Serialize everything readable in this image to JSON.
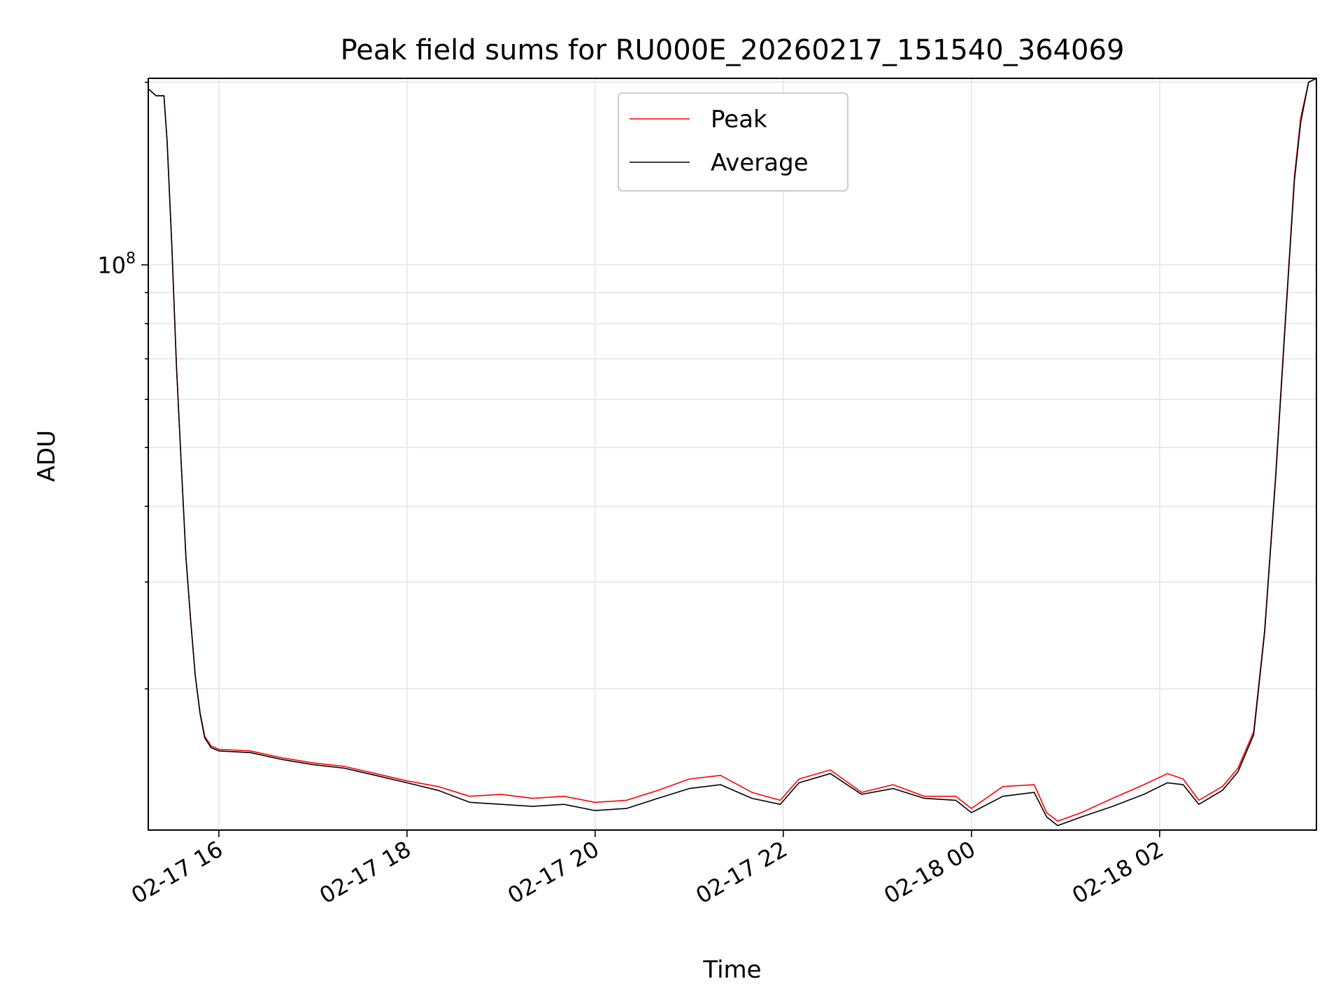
{
  "chart_data": {
    "type": "line",
    "title": "Peak field sums for RU000E_20260217_151540_364069",
    "xlabel": "Time",
    "ylabel": "ADU",
    "yscale": "log",
    "grid": true,
    "legend_position": "top-center",
    "x_start": "2026-02-17 15:15",
    "x_end": "2026-02-18 03:40",
    "xlim": [
      "2026-02-17 15:15",
      "2026-02-18 03:40"
    ],
    "ylim": [
      11700000,
      203000000
    ],
    "x_ticks": [
      {
        "time": "2026-02-17 16:00",
        "label": "02-17 16"
      },
      {
        "time": "2026-02-17 18:00",
        "label": "02-17 18"
      },
      {
        "time": "2026-02-17 20:00",
        "label": "02-17 20"
      },
      {
        "time": "2026-02-17 22:00",
        "label": "02-17 22"
      },
      {
        "time": "2026-02-18 00:00",
        "label": "02-18 00"
      },
      {
        "time": "2026-02-18 02:00",
        "label": "02-18 02"
      }
    ],
    "y_ticks": [
      {
        "value": 100000000,
        "label": "10",
        "exponent": "8"
      }
    ],
    "series": [
      {
        "name": "Peak",
        "color": "#ff0000",
        "x": [
          "2026-02-17 15:15",
          "2026-02-17 15:20",
          "2026-02-17 15:25",
          "2026-02-17 15:27",
          "2026-02-17 15:30",
          "2026-02-17 15:33",
          "2026-02-17 15:36",
          "2026-02-17 15:39",
          "2026-02-17 15:42",
          "2026-02-17 15:45",
          "2026-02-17 15:48",
          "2026-02-17 15:51",
          "2026-02-17 15:55",
          "2026-02-17 16:00",
          "2026-02-17 16:20",
          "2026-02-17 16:40",
          "2026-02-17 17:00",
          "2026-02-17 17:20",
          "2026-02-17 17:40",
          "2026-02-17 18:00",
          "2026-02-17 18:20",
          "2026-02-17 18:40",
          "2026-02-17 19:00",
          "2026-02-17 19:20",
          "2026-02-17 19:40",
          "2026-02-17 20:00",
          "2026-02-17 20:20",
          "2026-02-17 20:40",
          "2026-02-17 21:00",
          "2026-02-17 21:20",
          "2026-02-17 21:40",
          "2026-02-17 21:58",
          "2026-02-17 22:10",
          "2026-02-17 22:30",
          "2026-02-17 22:50",
          "2026-02-17 23:10",
          "2026-02-17 23:30",
          "2026-02-17 23:50",
          "2026-02-18 00:00",
          "2026-02-18 00:20",
          "2026-02-18 00:40",
          "2026-02-18 00:48",
          "2026-02-18 00:55",
          "2026-02-18 01:10",
          "2026-02-18 01:30",
          "2026-02-18 01:50",
          "2026-02-18 02:05",
          "2026-02-18 02:15",
          "2026-02-18 02:25",
          "2026-02-18 02:40",
          "2026-02-18 02:50",
          "2026-02-18 03:00",
          "2026-02-18 03:07",
          "2026-02-18 03:14",
          "2026-02-18 03:20",
          "2026-02-18 03:26",
          "2026-02-18 03:30",
          "2026-02-18 03:35",
          "2026-02-18 03:40"
        ],
        "y": [
          195000000,
          190000000,
          190000000,
          160000000,
          108000000,
          68000000,
          47000000,
          33000000,
          26000000,
          21000000,
          18300000,
          16700000,
          16100000,
          15900000,
          15800000,
          15400000,
          15100000,
          14900000,
          14500000,
          14100000,
          13800000,
          13300000,
          13400000,
          13200000,
          13300000,
          13000000,
          13100000,
          13600000,
          14200000,
          14400000,
          13500000,
          13100000,
          14200000,
          14700000,
          13500000,
          13900000,
          13300000,
          13300000,
          12700000,
          13800000,
          13900000,
          12500000,
          12100000,
          12500000,
          13200000,
          13900000,
          14500000,
          14200000,
          13100000,
          13800000,
          14800000,
          17000000,
          25000000,
          45000000,
          80000000,
          140000000,
          175000000,
          200000000,
          203000000
        ]
      },
      {
        "name": "Average",
        "color": "#000000",
        "x": [
          "2026-02-17 15:15",
          "2026-02-17 15:20",
          "2026-02-17 15:25",
          "2026-02-17 15:27",
          "2026-02-17 15:30",
          "2026-02-17 15:33",
          "2026-02-17 15:36",
          "2026-02-17 15:39",
          "2026-02-17 15:42",
          "2026-02-17 15:45",
          "2026-02-17 15:48",
          "2026-02-17 15:51",
          "2026-02-17 15:55",
          "2026-02-17 16:00",
          "2026-02-17 16:20",
          "2026-02-17 16:40",
          "2026-02-17 17:00",
          "2026-02-17 17:20",
          "2026-02-17 17:40",
          "2026-02-17 18:00",
          "2026-02-17 18:20",
          "2026-02-17 18:40",
          "2026-02-17 19:00",
          "2026-02-17 19:20",
          "2026-02-17 19:40",
          "2026-02-17 20:00",
          "2026-02-17 20:20",
          "2026-02-17 20:40",
          "2026-02-17 21:00",
          "2026-02-17 21:20",
          "2026-02-17 21:40",
          "2026-02-17 21:58",
          "2026-02-17 22:10",
          "2026-02-17 22:30",
          "2026-02-17 22:50",
          "2026-02-17 23:10",
          "2026-02-17 23:30",
          "2026-02-17 23:50",
          "2026-02-18 00:00",
          "2026-02-18 00:20",
          "2026-02-18 00:40",
          "2026-02-18 00:48",
          "2026-02-18 00:55",
          "2026-02-18 01:10",
          "2026-02-18 01:30",
          "2026-02-18 01:50",
          "2026-02-18 02:05",
          "2026-02-18 02:15",
          "2026-02-18 02:25",
          "2026-02-18 02:40",
          "2026-02-18 02:50",
          "2026-02-18 03:00",
          "2026-02-18 03:07",
          "2026-02-18 03:14",
          "2026-02-18 03:20",
          "2026-02-18 03:26",
          "2026-02-18 03:30",
          "2026-02-18 03:35",
          "2026-02-18 03:40"
        ],
        "y": [
          195000000,
          190000000,
          190000000,
          160000000,
          108000000,
          68000000,
          47000000,
          33000000,
          26000000,
          21000000,
          18200000,
          16600000,
          16000000,
          15800000,
          15700000,
          15300000,
          15000000,
          14800000,
          14400000,
          14000000,
          13600000,
          13000000,
          12900000,
          12800000,
          12900000,
          12600000,
          12700000,
          13200000,
          13700000,
          13900000,
          13200000,
          12900000,
          14000000,
          14500000,
          13400000,
          13700000,
          13200000,
          13100000,
          12500000,
          13300000,
          13500000,
          12300000,
          11900000,
          12300000,
          12800000,
          13400000,
          14000000,
          13900000,
          12900000,
          13600000,
          14600000,
          16800000,
          24800000,
          44500000,
          79000000,
          138000000,
          172000000,
          200000000,
          203000000
        ]
      }
    ]
  }
}
